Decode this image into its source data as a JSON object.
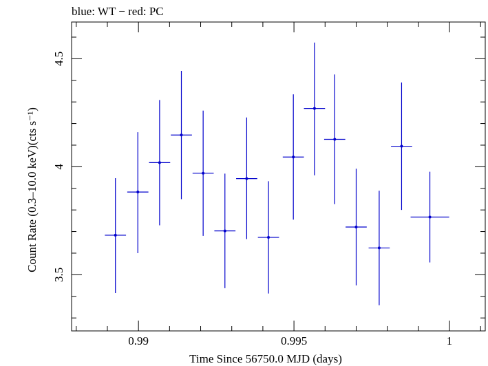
{
  "chart_data": {
    "type": "scatter",
    "title": "blue: WT − red: PC",
    "xlabel": "Time Since 56750.0 MJD (days)",
    "ylabel": "Count Rate (0.3–10.0 keV)(cts s⁻¹)",
    "xlim": [
      0.98785,
      1.00115
    ],
    "ylim": [
      3.24,
      4.67
    ],
    "x_ticks": [
      {
        "value": 0.99,
        "label": "0.99"
      },
      {
        "value": 0.995,
        "label": "0.995"
      },
      {
        "value": 1.0,
        "label": "1"
      }
    ],
    "x_minor_step": 0.001,
    "y_ticks": [
      {
        "value": 3.5,
        "label": "3.5"
      },
      {
        "value": 4.0,
        "label": "4"
      },
      {
        "value": 4.5,
        "label": "4.5"
      }
    ],
    "y_minor_step": 0.1,
    "grid": false,
    "series": [
      {
        "color": "#0000cc",
        "points": [
          {
            "x": 0.98926,
            "xerr": 0.00034,
            "y": 3.683,
            "yerr_low": 0.268,
            "yerr_high": 0.264
          },
          {
            "x": 0.98998,
            "xerr": 0.00034,
            "y": 3.883,
            "yerr_low": 0.283,
            "yerr_high": 0.277
          },
          {
            "x": 0.99068,
            "xerr": 0.00034,
            "y": 4.019,
            "yerr_low": 0.29,
            "yerr_high": 0.29
          },
          {
            "x": 0.99138,
            "xerr": 0.00034,
            "y": 4.147,
            "yerr_low": 0.297,
            "yerr_high": 0.297
          },
          {
            "x": 0.99208,
            "xerr": 0.00034,
            "y": 3.97,
            "yerr_low": 0.29,
            "yerr_high": 0.29
          },
          {
            "x": 0.99278,
            "xerr": 0.00034,
            "y": 3.703,
            "yerr_low": 0.265,
            "yerr_high": 0.265
          },
          {
            "x": 0.99348,
            "xerr": 0.00034,
            "y": 3.945,
            "yerr_low": 0.28,
            "yerr_high": 0.283
          },
          {
            "x": 0.99418,
            "xerr": 0.00034,
            "y": 3.673,
            "yerr_low": 0.26,
            "yerr_high": 0.26
          },
          {
            "x": 0.99498,
            "xerr": 0.00034,
            "y": 4.045,
            "yerr_low": 0.29,
            "yerr_high": 0.29
          },
          {
            "x": 0.99566,
            "xerr": 0.00034,
            "y": 4.27,
            "yerr_low": 0.31,
            "yerr_high": 0.305
          },
          {
            "x": 0.99631,
            "xerr": 0.00034,
            "y": 4.127,
            "yerr_low": 0.3,
            "yerr_high": 0.3
          },
          {
            "x": 0.997,
            "xerr": 0.00034,
            "y": 3.721,
            "yerr_low": 0.27,
            "yerr_high": 0.27
          },
          {
            "x": 0.99774,
            "xerr": 0.00034,
            "y": 3.624,
            "yerr_low": 0.265,
            "yerr_high": 0.265
          },
          {
            "x": 0.99846,
            "xerr": 0.00034,
            "y": 4.095,
            "yerr_low": 0.295,
            "yerr_high": 0.295
          },
          {
            "x": 0.99937,
            "xerr": 0.00062,
            "y": 3.767,
            "yerr_low": 0.21,
            "yerr_high": 0.21
          }
        ]
      }
    ]
  }
}
